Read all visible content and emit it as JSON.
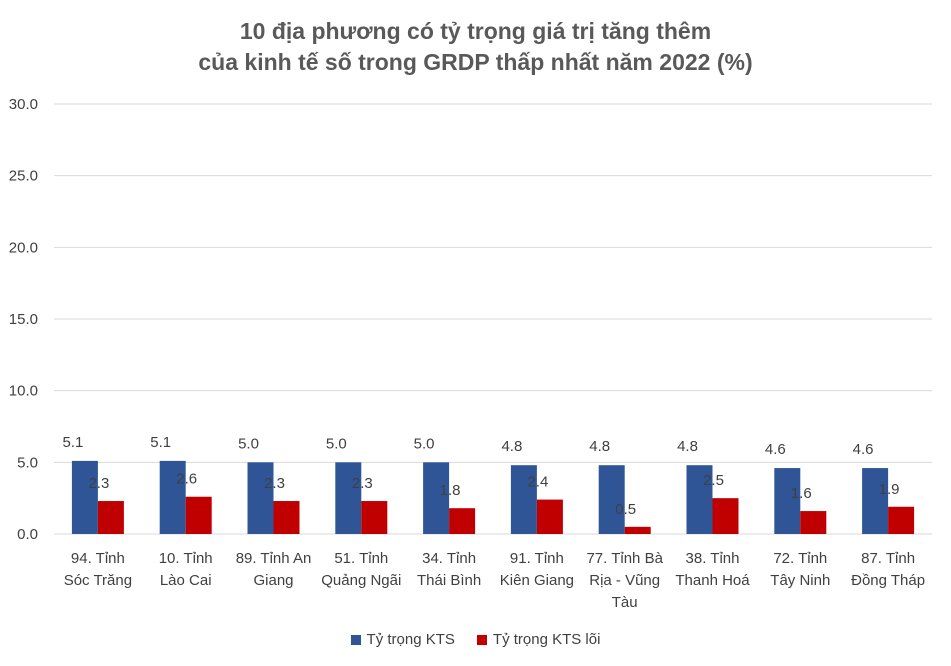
{
  "chart_data": {
    "type": "bar",
    "title_lines": [
      "10 địa phương có tỷ trọng giá trị tăng thêm",
      "của kinh tế số trong GRDP thấp nhất năm 2022 (%)"
    ],
    "categories": [
      [
        "94. Tỉnh",
        "Sóc Trăng"
      ],
      [
        "10. Tỉnh",
        "Lào Cai"
      ],
      [
        "89. Tỉnh An",
        "Giang"
      ],
      [
        "51. Tỉnh",
        "Quảng Ngãi"
      ],
      [
        "34. Tỉnh",
        "Thái Bình"
      ],
      [
        "91. Tỉnh",
        "Kiên Giang"
      ],
      [
        "77. Tỉnh Bà",
        "Rịa - Vũng",
        "Tàu"
      ],
      [
        "38. Tỉnh",
        "Thanh Hoá"
      ],
      [
        "72. Tỉnh",
        "Tây Ninh"
      ],
      [
        "87. Tỉnh",
        "Đồng Tháp"
      ]
    ],
    "series": [
      {
        "name": "Tỷ trọng KTS",
        "color": "#2F5597",
        "values": [
          5.1,
          5.1,
          5.0,
          5.0,
          5.0,
          4.8,
          4.8,
          4.8,
          4.6,
          4.6
        ]
      },
      {
        "name": "Tỷ trọng KTS lõi",
        "color": "#C00000",
        "values": [
          2.3,
          2.6,
          2.3,
          2.3,
          1.8,
          2.4,
          0.5,
          2.5,
          1.6,
          1.9
        ]
      }
    ],
    "ylim": [
      0,
      30
    ],
    "yticks": [
      "0.0",
      "5.0",
      "10.0",
      "15.0",
      "20.0",
      "25.0",
      "30.0"
    ],
    "grid": true,
    "legend_position": "bottom",
    "colors": {
      "gridline": "#D9D9D9",
      "text": "#404040",
      "title": "#595959"
    }
  }
}
